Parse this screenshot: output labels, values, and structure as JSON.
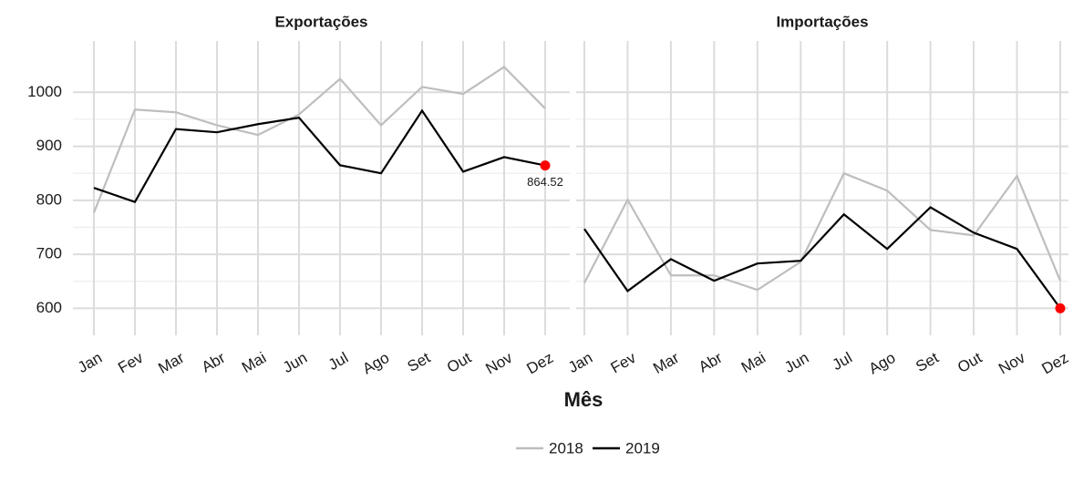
{
  "chart_data": [
    {
      "type": "line",
      "title": "Exportações",
      "xlabel": "Mês",
      "categories": [
        "Jan",
        "Fev",
        "Mar",
        "Abr",
        "Mai",
        "Jun",
        "Jul",
        "Ago",
        "Set",
        "Out",
        "Nov",
        "Dez"
      ],
      "series": [
        {
          "name": "2018",
          "color": "#bebebe",
          "values": [
            777,
            968,
            963,
            939,
            921,
            959,
            1025,
            939,
            1010,
            997,
            1047,
            970
          ]
        },
        {
          "name": "2019",
          "color": "#000000",
          "values": [
            823,
            797,
            932,
            926,
            941,
            953,
            865,
            850,
            966,
            853,
            880,
            864.52
          ]
        }
      ],
      "ylim": [
        550,
        1095
      ],
      "yticks": [
        600,
        700,
        800,
        900,
        1000
      ],
      "grid": true,
      "highlight_color": "#ff0000",
      "label_last": true
    },
    {
      "type": "line",
      "title": "Importações",
      "categories": [
        "Jan",
        "Fev",
        "Mar",
        "Abr",
        "Mai",
        "Jun",
        "Jul",
        "Ago",
        "Set",
        "Out",
        "Nov",
        "Dez"
      ],
      "series": [
        {
          "name": "2018",
          "color": "#bebebe",
          "values": [
            647,
            801,
            661,
            661,
            634,
            686,
            850,
            818,
            745,
            735,
            845,
            651
          ]
        },
        {
          "name": "2019",
          "color": "#000000",
          "values": [
            747,
            632,
            691,
            651,
            683,
            688,
            774,
            710,
            787,
            740,
            710,
            600
          ]
        }
      ],
      "ylim": [
        550,
        1095
      ],
      "yticks": [
        600,
        700,
        800,
        900,
        1000
      ],
      "grid": true,
      "highlight_color": "#ff0000",
      "label_last": false
    }
  ]
}
